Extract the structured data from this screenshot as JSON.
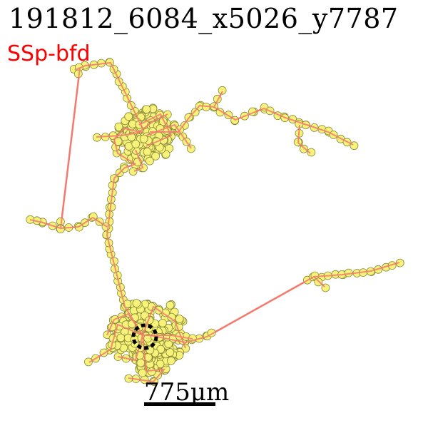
{
  "title": "191812_6084_x5026_y7787",
  "region_label": "SSp-bfd",
  "scale_bar": {
    "label": "775μm"
  },
  "colors": {
    "edge": "#f47a6e",
    "node_fill": "#f7f27a",
    "node_stroke": "#8a8a3a",
    "soma": "#000000",
    "region": "#ff0000"
  }
}
